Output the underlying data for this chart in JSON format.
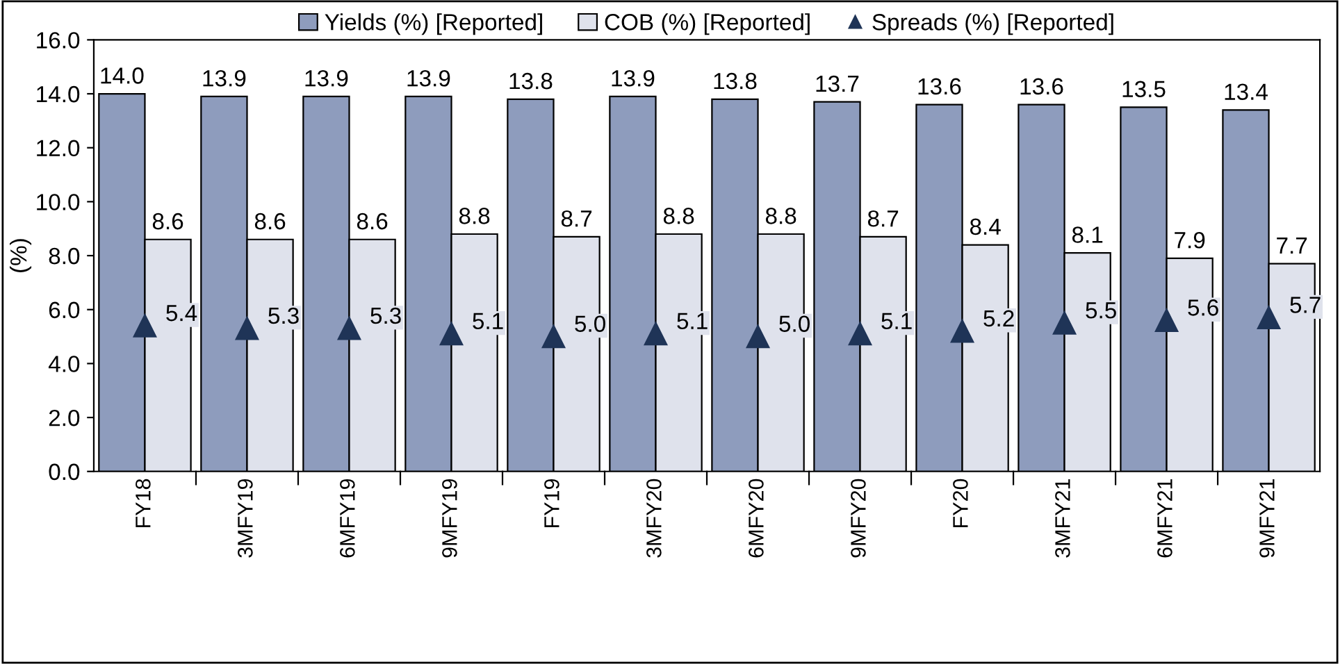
{
  "chart_data": {
    "type": "bar",
    "ylabel": "(%)",
    "categories": [
      "FY18",
      "3MFY19",
      "6MFY19",
      "9MFY19",
      "FY19",
      "3MFY20",
      "6MFY20",
      "9MFY20",
      "FY20",
      "3MFY21",
      "6MFY21",
      "9MFY21"
    ],
    "series": [
      {
        "name": "Yields (%) [Reported]",
        "color": "#8e9cbd",
        "values": [
          14.0,
          13.9,
          13.9,
          13.9,
          13.8,
          13.9,
          13.8,
          13.7,
          13.6,
          13.6,
          13.5,
          13.4
        ],
        "value_labels": [
          "14.0",
          "13.9",
          "13.9",
          "13.9",
          "13.8",
          "13.9",
          "13.8",
          "13.7",
          "13.6",
          "13.6",
          "13.5",
          "13.4"
        ]
      },
      {
        "name": "COB (%) [Reported]",
        "color": "#dfe2ec",
        "values": [
          8.6,
          8.6,
          8.6,
          8.8,
          8.7,
          8.8,
          8.8,
          8.7,
          8.4,
          8.1,
          7.9,
          7.7
        ],
        "value_labels": [
          "8.6",
          "8.6",
          "8.6",
          "8.8",
          "8.7",
          "8.8",
          "8.8",
          "8.7",
          "8.4",
          "8.1",
          "7.9",
          "7.7"
        ]
      },
      {
        "name": "Spreads (%) [Reported]",
        "type": "scatter",
        "color": "#1f3457",
        "marker": "triangle",
        "values": [
          5.4,
          5.3,
          5.3,
          5.1,
          5.0,
          5.1,
          5.0,
          5.1,
          5.2,
          5.5,
          5.6,
          5.7
        ],
        "value_labels": [
          "5.4",
          "5.3",
          "5.3",
          "5.1",
          "5.0",
          "5.1",
          "5.0",
          "5.1",
          "5.2",
          "5.5",
          "5.6",
          "5.7"
        ]
      }
    ],
    "ylim": [
      0,
      16
    ],
    "yticks": [
      {
        "value": 0,
        "label": "0.0"
      },
      {
        "value": 2,
        "label": "2.0"
      },
      {
        "value": 4,
        "label": "4.0"
      },
      {
        "value": 6,
        "label": "6.0"
      },
      {
        "value": 8,
        "label": "8.0"
      },
      {
        "value": 10,
        "label": "10.0"
      },
      {
        "value": 12,
        "label": "12.0"
      },
      {
        "value": 14,
        "label": "14.0"
      },
      {
        "value": 16,
        "label": "16.0"
      }
    ],
    "grid": false,
    "legend": "top"
  }
}
